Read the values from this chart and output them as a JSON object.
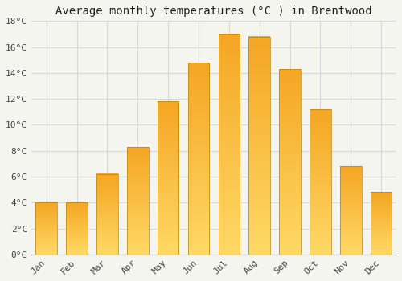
{
  "title": "Average monthly temperatures (°C ) in Brentwood",
  "months": [
    "Jan",
    "Feb",
    "Mar",
    "Apr",
    "May",
    "Jun",
    "Jul",
    "Aug",
    "Sep",
    "Oct",
    "Nov",
    "Dec"
  ],
  "values": [
    4.0,
    4.0,
    6.2,
    8.3,
    11.8,
    14.8,
    17.0,
    16.8,
    14.3,
    11.2,
    6.8,
    4.8
  ],
  "bar_color_dark": "#F5A623",
  "bar_color_light": "#FFD966",
  "bar_edge_color": "#B8860B",
  "ylim": [
    0,
    18
  ],
  "yticks": [
    0,
    2,
    4,
    6,
    8,
    10,
    12,
    14,
    16,
    18
  ],
  "ytick_labels": [
    "0°C",
    "2°C",
    "4°C",
    "6°C",
    "8°C",
    "10°C",
    "12°C",
    "14°C",
    "16°C",
    "18°C"
  ],
  "background_color": "#F5F5F0",
  "grid_color": "#D8D8D8",
  "title_fontsize": 10,
  "tick_fontsize": 8,
  "font_family": "monospace"
}
